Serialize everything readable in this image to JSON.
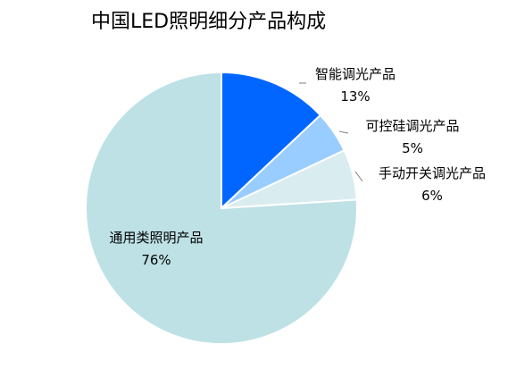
{
  "chart_data": {
    "type": "pie",
    "title": "中国LED照明细分产品构成",
    "slices": [
      {
        "label": "智能调光产品",
        "value": 13,
        "value_label": "13%",
        "color": "#0066ff"
      },
      {
        "label": "可控硅调光产品",
        "value": 5,
        "value_label": "5%",
        "color": "#99ccff"
      },
      {
        "label": "手动开关调光产品",
        "value": 6,
        "value_label": "6%",
        "color": "#d9edf0"
      },
      {
        "label": "通用类照明产品",
        "value": 76,
        "value_label": "76%",
        "color": "#bde1e5"
      }
    ],
    "start_angle": "12 o'clock",
    "direction": "clockwise",
    "legend": "none",
    "data_labels": "outside with leader lines (small slices), inside (large slice)"
  }
}
